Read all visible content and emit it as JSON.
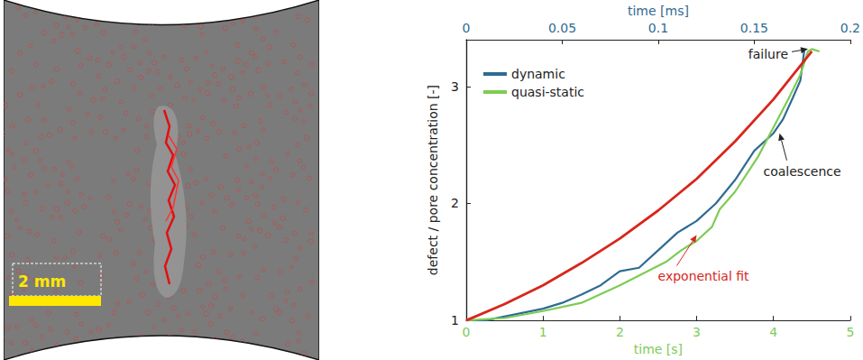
{
  "photo": {
    "scale_bar_label": "2 mm"
  },
  "chart_data": {
    "type": "line",
    "xlabel": "time [s]",
    "xlim": [
      0,
      5
    ],
    "xticks": [
      0,
      1,
      2,
      3,
      4,
      5
    ],
    "x2label": "time [ms]",
    "x2lim": [
      0,
      0.2
    ],
    "x2ticks": [
      0,
      0.05,
      0.1,
      0.15,
      0.2
    ],
    "ylabel": "defect / pore concentration [-]",
    "ylim": [
      1,
      3.4
    ],
    "yticks": [
      1,
      2,
      3
    ],
    "grid": false,
    "legend": "upper left",
    "series": [
      {
        "name": "dynamic",
        "color": "#2f6b93",
        "axis": "x2",
        "x": [
          0,
          0.01,
          0.025,
          0.04,
          0.05,
          0.06,
          0.07,
          0.08,
          0.09,
          0.1,
          0.11,
          0.12,
          0.13,
          0.14,
          0.15,
          0.16,
          0.165,
          0.17,
          0.174,
          0.176
        ],
        "values": [
          1.0,
          1.0,
          1.05,
          1.1,
          1.15,
          1.22,
          1.3,
          1.42,
          1.45,
          1.6,
          1.75,
          1.85,
          2.0,
          2.2,
          2.45,
          2.6,
          2.72,
          2.9,
          3.05,
          3.3
        ]
      },
      {
        "name": "quasi-static",
        "color": "#7dcc55",
        "x": [
          0,
          0.5,
          1,
          1.5,
          2,
          2.3,
          2.6,
          2.8,
          3.0,
          3.2,
          3.3,
          3.5,
          3.8,
          4.0,
          4.2,
          4.35,
          4.45,
          4.5,
          4.6
        ],
        "values": [
          1.0,
          1.02,
          1.08,
          1.15,
          1.3,
          1.4,
          1.5,
          1.6,
          1.68,
          1.8,
          1.95,
          2.1,
          2.4,
          2.65,
          2.9,
          3.1,
          3.3,
          3.32,
          3.3
        ]
      },
      {
        "color": "#d8261b",
        "x": [
          0,
          0.5,
          1,
          1.5,
          2,
          2.5,
          3,
          3.5,
          4,
          4.5
        ],
        "values": [
          1.0,
          1.14,
          1.3,
          1.49,
          1.7,
          1.94,
          2.21,
          2.53,
          2.89,
          3.3
        ]
      }
    ],
    "annotations": [
      {
        "text": "failure",
        "point": [
          4.45,
          3.32
        ]
      },
      {
        "text": "coalescence",
        "point": [
          4.08,
          2.6
        ]
      },
      {
        "text": "exponential fit",
        "point": [
          3.0,
          1.73
        ],
        "color": "#d8261b"
      }
    ]
  }
}
